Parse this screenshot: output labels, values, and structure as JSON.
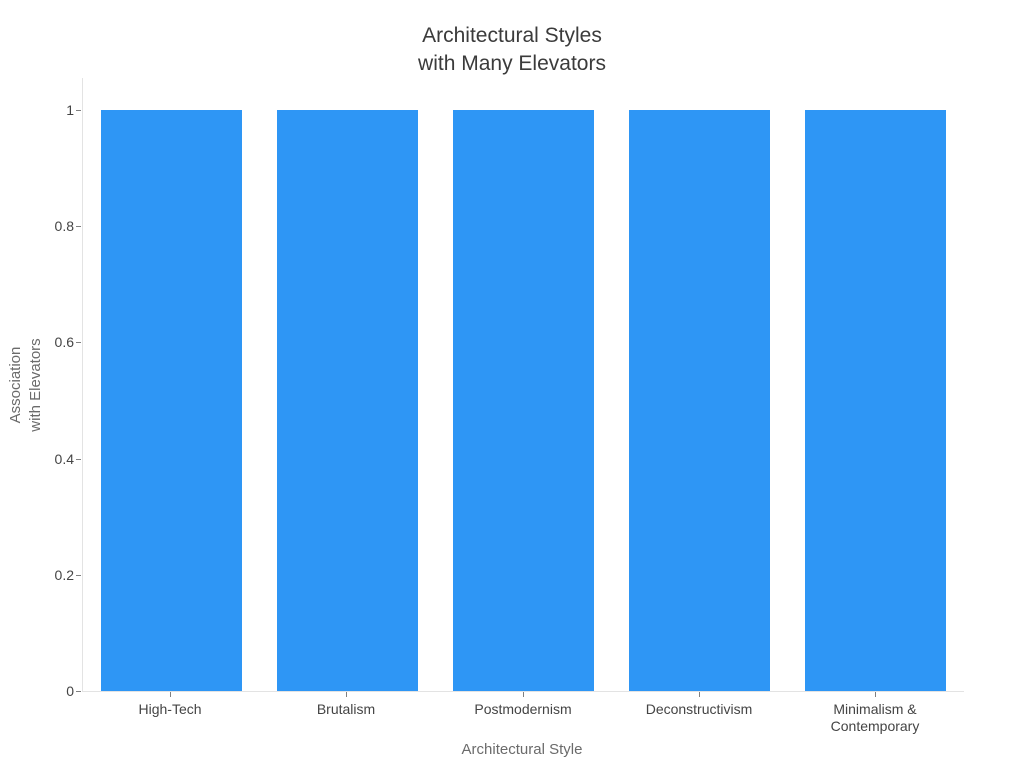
{
  "chart_data": {
    "type": "bar",
    "title": "Architectural Styles\nwith Many Elevators",
    "categories": [
      "High-Tech",
      "Brutalism",
      "Postmodernism",
      "Deconstructivism",
      "Minimalism &\nContemporary"
    ],
    "values": [
      1,
      1,
      1,
      1,
      1
    ],
    "xlabel": "Architectural Style",
    "ylabel": "Association\nwith Elevators",
    "yticks": [
      "0",
      "0.2",
      "0.4",
      "0.6",
      "0.8",
      "1"
    ],
    "ylim": [
      0,
      1.055
    ],
    "grid": false,
    "legend": "none",
    "colors": {
      "bar": "#2e96f5",
      "paper": "#ffffff",
      "axis_line": "#e3e3e3",
      "tick_mark": "#808080",
      "tick_label": "#444444",
      "title": "#3b3b3b",
      "axis_title": "#6b6b6b"
    }
  }
}
